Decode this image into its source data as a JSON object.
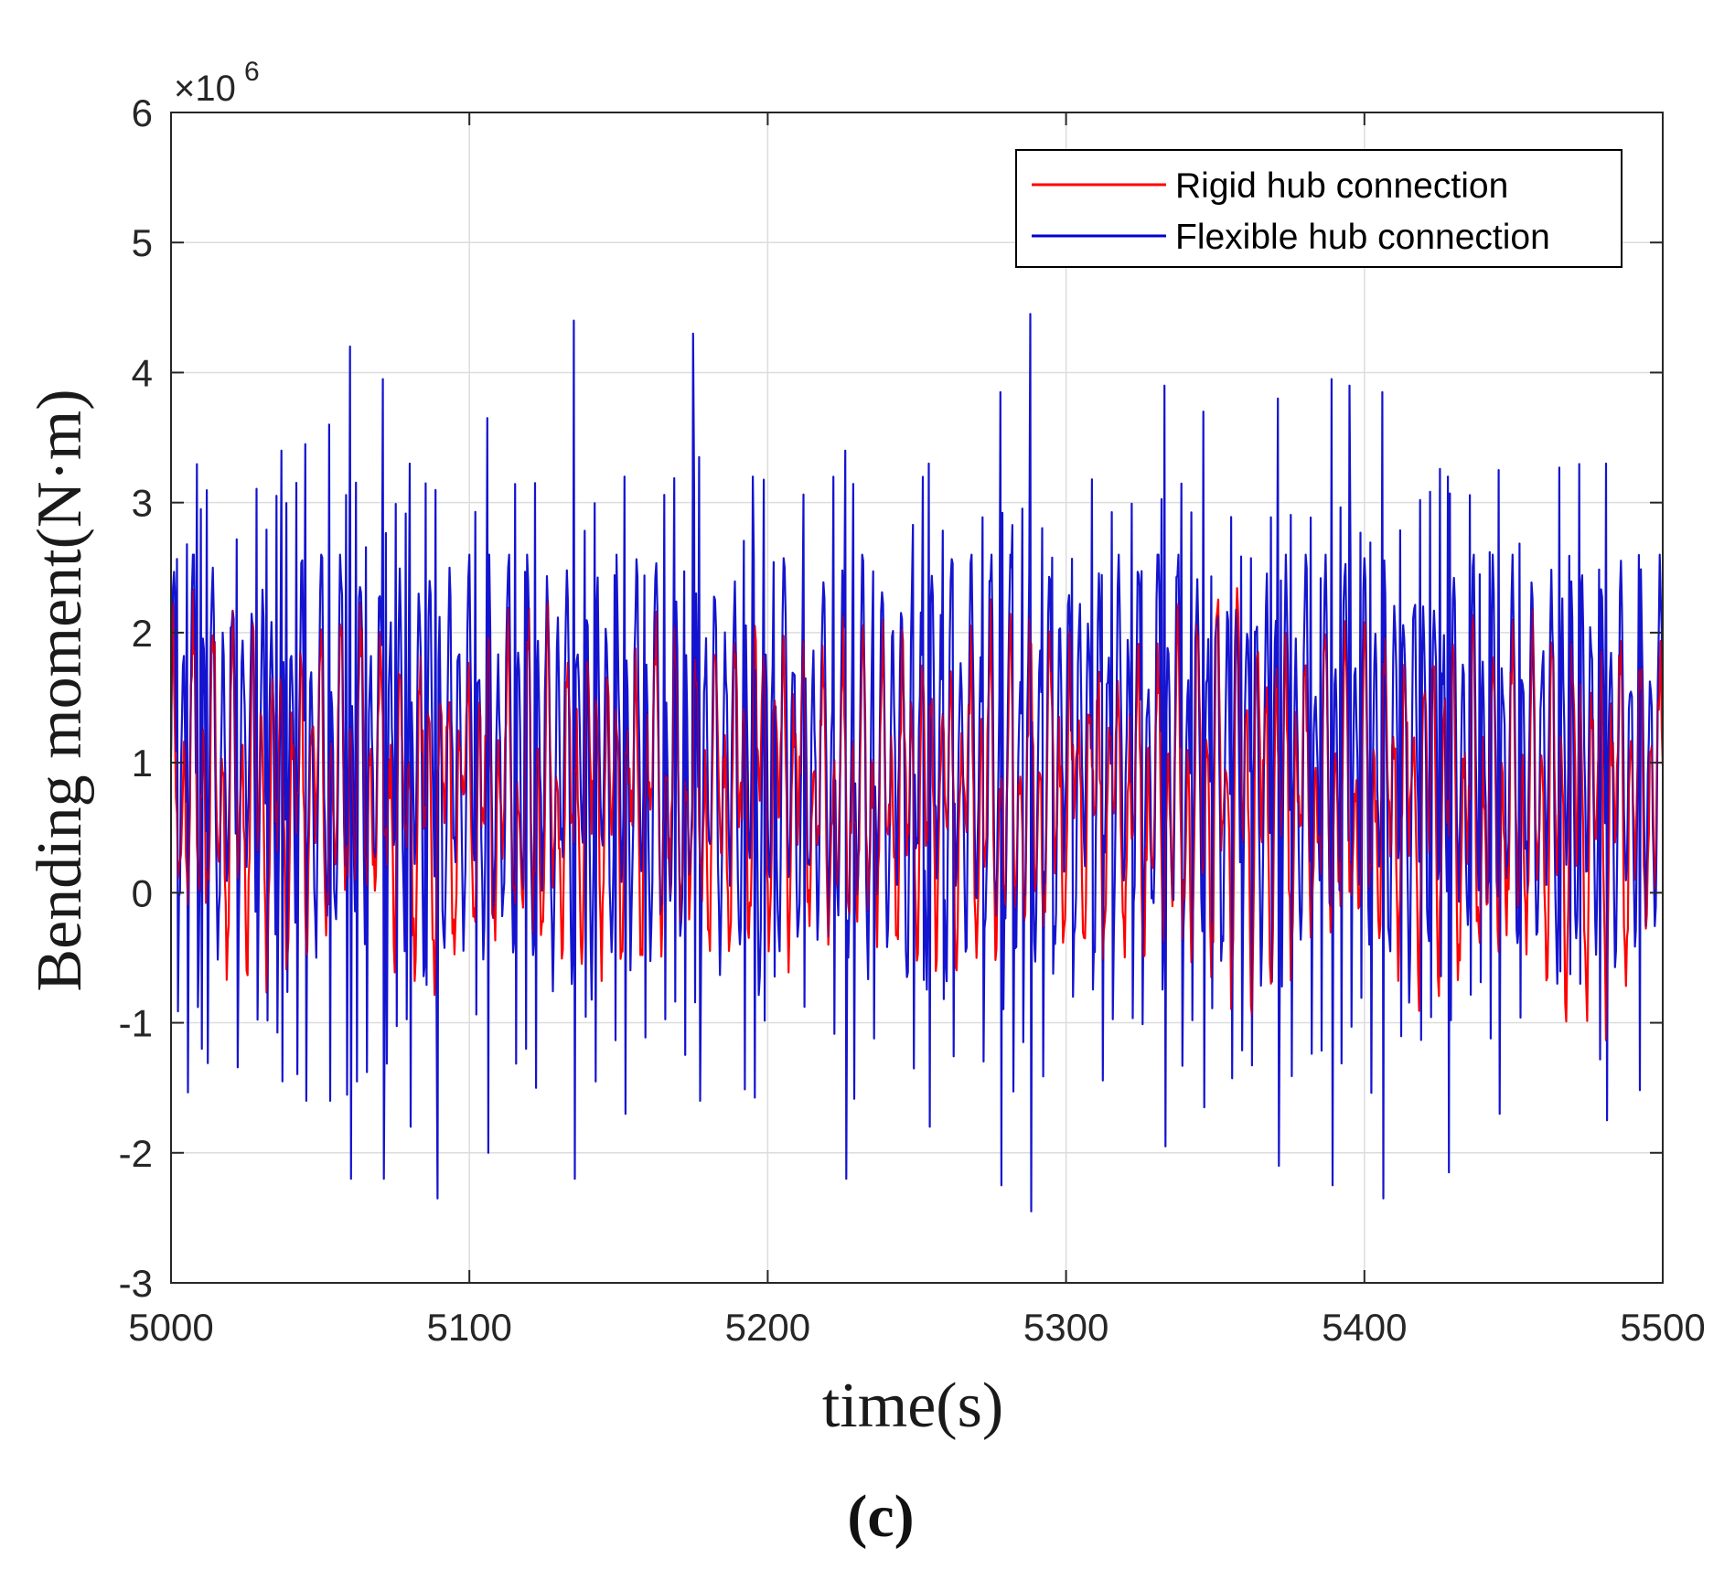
{
  "chart_data": {
    "type": "line",
    "title": "",
    "xlabel": "time(s)",
    "ylabel": "Bending moment(N·m)",
    "y_exponent_label": "×10",
    "y_exponent_power": "6",
    "panel_label": "(c)",
    "xlim": [
      5000,
      5500
    ],
    "ylim": [
      -3,
      6
    ],
    "xticks": [
      5000,
      5100,
      5200,
      5300,
      5400,
      5500
    ],
    "yticks": [
      -3,
      -2,
      -1,
      0,
      1,
      2,
      3,
      4,
      5,
      6
    ],
    "grid": true,
    "legend_position": "top-right",
    "series": [
      {
        "name": "Rigid hub connection",
        "color": "#ff0000",
        "x": [
          5000,
          5500
        ],
        "y_upper_envelope": [
          2.3,
          2.6,
          2.2,
          2.5,
          2.2,
          2.4,
          2.5,
          2.2,
          2.4,
          2.3,
          2.5,
          2.1,
          2.4,
          2.2,
          2.5,
          2.3,
          2.2,
          2.4,
          2.8,
          2.3,
          2.2,
          2.5,
          2.3,
          2.4,
          2.6,
          2.2
        ],
        "y_lower_envelope": [
          -0.6,
          -1.1,
          -0.8,
          -0.6,
          -0.9,
          -0.8,
          -1.1,
          -0.7,
          -0.8,
          -1.0,
          -0.7,
          -0.6,
          -0.9,
          -0.8,
          -1.0,
          -0.7,
          -0.8,
          -1.1,
          -1.2,
          -0.9,
          -0.8,
          -1.0,
          -0.9,
          -1.1,
          -1.4,
          -0.6
        ],
        "mean": 1.0,
        "cycles_visible": 150,
        "note": "dense oscillating time series; envelope values estimated from figure (units ×10^6 N·m)"
      },
      {
        "name": "Flexible hub connection",
        "color": "#0000cc",
        "x": [
          5000,
          5500
        ],
        "peaks": [
          {
            "t": 5010,
            "max": 2.95,
            "min": -1.2
          },
          {
            "t": 5022,
            "max": 3.6,
            "min": -1.95
          },
          {
            "t": 5037,
            "max": 3.4,
            "min": -1.45
          },
          {
            "t": 5045,
            "max": 3.45,
            "min": -1.6
          },
          {
            "t": 5053,
            "max": 3.6,
            "min": -1.6
          },
          {
            "t": 5060,
            "max": 4.2,
            "min": -2.2
          },
          {
            "t": 5071,
            "max": 3.95,
            "min": -2.2
          },
          {
            "t": 5080,
            "max": 3.3,
            "min": -1.8
          },
          {
            "t": 5089,
            "max": 3.4,
            "min": -2.35
          },
          {
            "t": 5106,
            "max": 3.65,
            "min": -2.0
          },
          {
            "t": 5122,
            "max": 3.15,
            "min": -1.5
          },
          {
            "t": 5135,
            "max": 4.4,
            "min": -2.2
          },
          {
            "t": 5142,
            "max": 3.15,
            "min": -1.8
          },
          {
            "t": 5152,
            "max": 3.2,
            "min": -1.7
          },
          {
            "t": 5175,
            "max": 4.3,
            "min": -2.8
          },
          {
            "t": 5177,
            "max": 3.35,
            "min": -1.6
          },
          {
            "t": 5195,
            "max": 3.2,
            "min": -1.85
          },
          {
            "t": 5226,
            "max": 3.4,
            "min": -2.2
          },
          {
            "t": 5254,
            "max": 3.3,
            "min": -1.8
          },
          {
            "t": 5278,
            "max": 3.85,
            "min": -2.25
          },
          {
            "t": 5288,
            "max": 4.45,
            "min": -2.45
          },
          {
            "t": 5333,
            "max": 3.9,
            "min": -1.95
          },
          {
            "t": 5346,
            "max": 3.7,
            "min": -1.65
          },
          {
            "t": 5371,
            "max": 3.8,
            "min": -2.1
          },
          {
            "t": 5389,
            "max": 3.95,
            "min": -2.25
          },
          {
            "t": 5395,
            "max": 3.9,
            "min": -2.4
          },
          {
            "t": 5406,
            "max": 3.85,
            "min": -2.35
          },
          {
            "t": 5428,
            "max": 3.2,
            "min": -2.15
          },
          {
            "t": 5445,
            "max": 3.25,
            "min": -1.7
          },
          {
            "t": 5481,
            "max": 3.3,
            "min": -1.75
          }
        ],
        "mean": 1.0,
        "cycles_visible": 150,
        "note": "dense oscillating time series with larger peaks than rigid case; values estimated (units ×10^6 N·m)"
      }
    ]
  }
}
